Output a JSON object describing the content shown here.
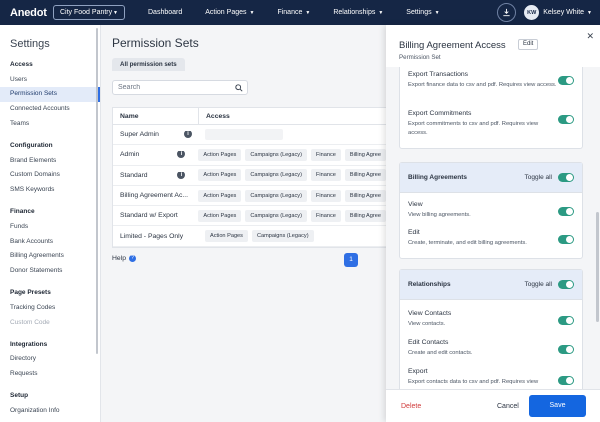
{
  "app": {
    "logo": "Anedot",
    "org_selector": "City Food Pantry",
    "nav": [
      "Dashboard",
      "Action Pages",
      "Finance",
      "Relationships",
      "Settings"
    ],
    "user_initials": "KW",
    "user_name": "Kelsey White"
  },
  "sidebar": {
    "title": "Settings",
    "sections": [
      {
        "label": "Access",
        "items": [
          "Users",
          "Permission Sets",
          "Connected Accounts",
          "Teams"
        ]
      },
      {
        "label": "Configuration",
        "items": [
          "Brand Elements",
          "Custom Domains",
          "SMS Keywords"
        ]
      },
      {
        "label": "Finance",
        "items": [
          "Funds",
          "Bank Accounts",
          "Billing Agreements",
          "Donor Statements"
        ]
      },
      {
        "label": "Page Presets",
        "items": [
          "Tracking Codes",
          "Custom Code"
        ]
      },
      {
        "label": "Integrations",
        "items": [
          "Directory",
          "Requests"
        ]
      },
      {
        "label": "Setup",
        "items": [
          "Organization Info"
        ]
      }
    ],
    "active_item": "Permission Sets"
  },
  "main": {
    "title": "Permission Sets",
    "tab": "All permission sets",
    "search_placeholder": "Search",
    "columns": [
      "Name",
      "Access"
    ],
    "rows": [
      {
        "name": "Super Admin",
        "info": true,
        "chips": []
      },
      {
        "name": "Admin",
        "info": true,
        "chips": [
          "Action Pages",
          "Campaigns (Legacy)",
          "Finance",
          "Billing Agree"
        ]
      },
      {
        "name": "Standard",
        "info": true,
        "chips": [
          "Action Pages",
          "Campaigns (Legacy)",
          "Finance",
          "Billing Agree"
        ]
      },
      {
        "name": "Billing Agreement Ac...",
        "info": false,
        "chips": [
          "Action Pages",
          "Campaigns (Legacy)",
          "Finance",
          "Billing Agree"
        ]
      },
      {
        "name": "Standard w/ Export",
        "info": false,
        "chips": [
          "Action Pages",
          "Campaigns (Legacy)",
          "Finance",
          "Billing Agree"
        ]
      },
      {
        "name": "Limited - Pages Only",
        "info": false,
        "chips": [
          "Action Pages",
          "Campaigns (Legacy)"
        ]
      }
    ],
    "help": "Help",
    "page": "1"
  },
  "drawer": {
    "title": "Billing Agreement Access",
    "edit": "Edit",
    "subtitle": "Permission Set",
    "top_perms": [
      {
        "title": "Export Transactions",
        "desc": "Export finance data to csv and pdf. Requires view access."
      },
      {
        "title": "Export Commitments",
        "desc": "Export commitments to csv and pdf. Requires view access."
      }
    ],
    "billing": {
      "title": "Billing Agreements",
      "toggle_all": "Toggle all",
      "perms": [
        {
          "title": "View",
          "desc": "View billing agreements."
        },
        {
          "title": "Edit",
          "desc": "Create, terminate, and edit billing agreements."
        }
      ]
    },
    "relationships": {
      "title": "Relationships",
      "toggle_all": "Toggle all",
      "perms": [
        {
          "title": "View Contacts",
          "desc": "View contacts."
        },
        {
          "title": "Edit Contacts",
          "desc": "Create and edit contacts."
        },
        {
          "title": "Export",
          "desc": "Export contacts data to csv and pdf. Requires view"
        }
      ]
    },
    "delete": "Delete",
    "cancel": "Cancel",
    "save": "Save"
  },
  "colors": {
    "nav_bg": "#152645",
    "accent": "#2f6fe4",
    "toggle_on": "#2c9a83",
    "danger": "#d03b3b"
  }
}
